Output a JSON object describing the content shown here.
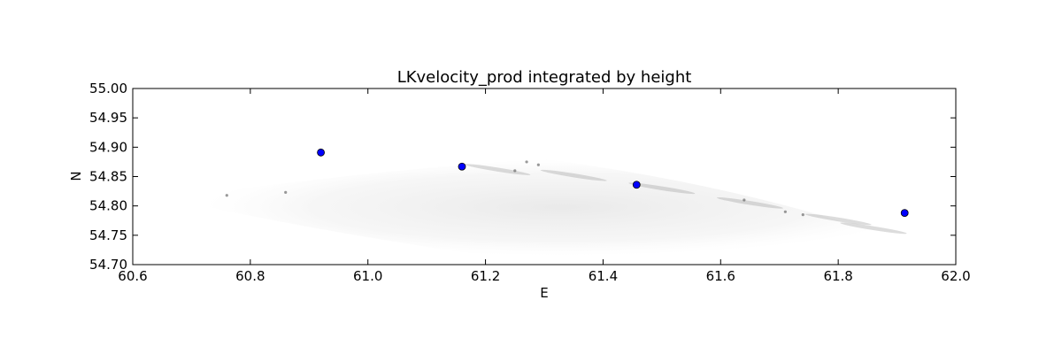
{
  "chart_data": {
    "type": "scatter",
    "title": "LKvelocity_prod integrated by height",
    "xlabel": "E",
    "ylabel": "N",
    "xlim": [
      60.6,
      62.0
    ],
    "ylim": [
      54.7,
      55.0
    ],
    "x_ticks": [
      "60.6",
      "60.8",
      "61.0",
      "61.2",
      "61.4",
      "61.6",
      "61.8",
      "62.0"
    ],
    "y_ticks": [
      "54.70",
      "54.75",
      "54.80",
      "54.85",
      "54.90",
      "54.95",
      "55.00"
    ],
    "grid": false,
    "point_color": "#0000ff",
    "points": [
      {
        "x": 60.92,
        "y": 54.891
      },
      {
        "x": 61.16,
        "y": 54.867
      },
      {
        "x": 61.457,
        "y": 54.836
      },
      {
        "x": 61.913,
        "y": 54.788
      }
    ],
    "background_field": {
      "description_color": "#808080",
      "extent_x": [
        60.72,
        61.94
      ],
      "extent_y": [
        54.715,
        54.88
      ]
    }
  }
}
